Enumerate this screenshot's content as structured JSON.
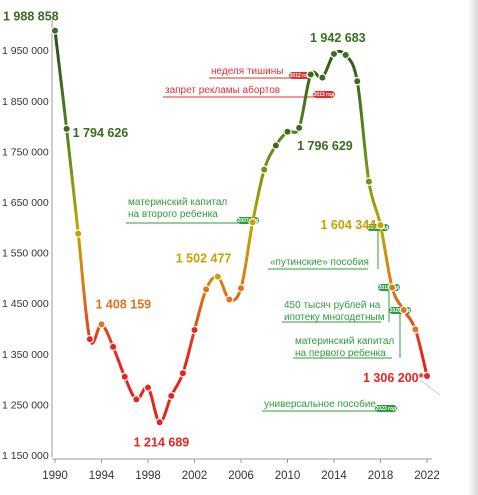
{
  "chart_data": {
    "type": "line",
    "title": "",
    "xlabel": "",
    "ylabel": "",
    "xlim": [
      1990,
      2023
    ],
    "ylim": [
      1150000,
      2000000
    ],
    "x_ticks": [
      1990,
      1994,
      1998,
      2002,
      2006,
      2010,
      2014,
      2018,
      2022
    ],
    "y_ticks": [
      1150000,
      1250000,
      1350000,
      1450000,
      1550000,
      1650000,
      1750000,
      1850000,
      1950000
    ],
    "y_tick_labels": [
      "1 150 000",
      "1 250 000",
      "1 350 000",
      "1 450 000",
      "1 550 000",
      "1 650 000",
      "1 750 000",
      "1 850 000",
      "1 950 000"
    ],
    "grid": false,
    "series": [
      {
        "x": [
          1990,
          1991,
          1992,
          1993,
          1994,
          1995,
          1996,
          1997,
          1998,
          1999,
          2000,
          2001,
          2002,
          2003,
          2004,
          2005,
          2006,
          2007,
          2008,
          2009,
          2010,
          2011,
          2012,
          2013,
          2014,
          2015,
          2016,
          2017,
          2018,
          2019,
          2020,
          2021,
          2022
        ],
        "values": [
          1988858,
          1794626,
          1587644,
          1378983,
          1408159,
          1363806,
          1304638,
          1259943,
          1283292,
          1214689,
          1266800,
          1311604,
          1396967,
          1477301,
          1502477,
          1457376,
          1479637,
          1610122,
          1713947,
          1761687,
          1788948,
          1796629,
          1902084,
          1895822,
          1942683,
          1940579,
          1888729,
          1690307,
          1604344,
          1481074,
          1436514,
          1398253,
          1306200
        ]
      }
    ],
    "value_labels": [
      {
        "x": 1990,
        "text": "1 988 858"
      },
      {
        "x": 1991,
        "text": "1 794 626"
      },
      {
        "x": 1994,
        "text": "1 408 159"
      },
      {
        "x": 1999,
        "text": "1 214 689"
      },
      {
        "x": 2004,
        "text": "1 502 477"
      },
      {
        "x": 2011,
        "text": "1 796 629"
      },
      {
        "x": 2014,
        "text": "1 942 683"
      },
      {
        "x": 2018,
        "text": "1 604 344"
      },
      {
        "x": 2022,
        "text": "1 306 200*"
      }
    ],
    "annotations": [
      {
        "lines": [
          "неделя тишины"
        ],
        "badge": "2012 год",
        "color": "#e0312b"
      },
      {
        "lines": [
          "запрет рекламы абортов"
        ],
        "badge": "2013 год",
        "color": "#e0312b"
      },
      {
        "lines": [
          "материнский капитал",
          "на второго ребенка"
        ],
        "badge": "2007 год",
        "color": "#2e9c3a"
      },
      {
        "lines": [
          "«путинские» пособия"
        ],
        "badge": "2018 год",
        "color": "#2e9c3a"
      },
      {
        "lines": [
          "450 тысяч рублей на",
          "ипотеку многодетным"
        ],
        "badge": "2019 год",
        "color": "#2e9c3a"
      },
      {
        "lines": [
          "материнский капитал",
          "на первого ребенка"
        ],
        "badge": "2020 год",
        "color": "#2e9c3a"
      },
      {
        "lines": [
          "универсальное пособие"
        ],
        "badge": "2023 год",
        "color": "#2e9c3a"
      }
    ],
    "colors": {
      "high": "#2a5a1c",
      "mid": "#c8a100",
      "low": "#e5261f",
      "green": "#2e9c3a",
      "red": "#e0312b",
      "marker_stroke": "#ffffff"
    }
  }
}
